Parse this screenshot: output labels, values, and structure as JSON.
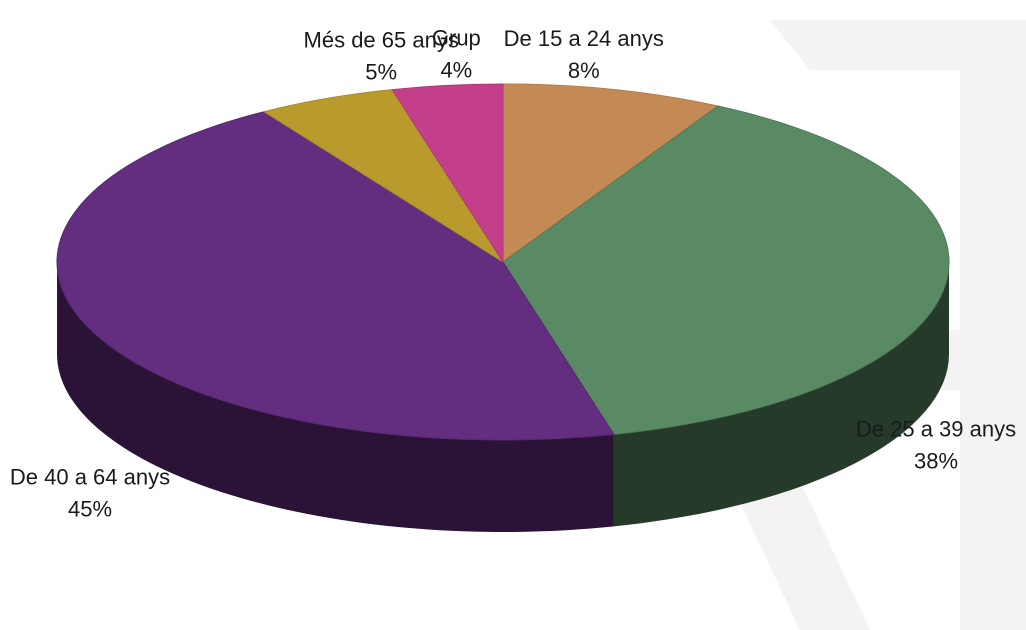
{
  "chart_data": {
    "type": "pie",
    "style": "3d",
    "title": "",
    "slices": [
      {
        "label": "De 15 a 24 anys",
        "value": 8,
        "display": "8%",
        "color": "#c48a55"
      },
      {
        "label": "De 25 a 39 anys",
        "value": 38,
        "display": "38%",
        "color": "#5a8a64"
      },
      {
        "label": "De 40 a 64 anys",
        "value": 45,
        "display": "45%",
        "color": "#632d80"
      },
      {
        "label": "Més de 65 anys",
        "value": 5,
        "display": "5%",
        "color": "#b99a2c"
      },
      {
        "label": "Grup",
        "value": 4,
        "display": "4%",
        "color": "#c43f89"
      }
    ],
    "legend": "none",
    "labels": "outside"
  }
}
